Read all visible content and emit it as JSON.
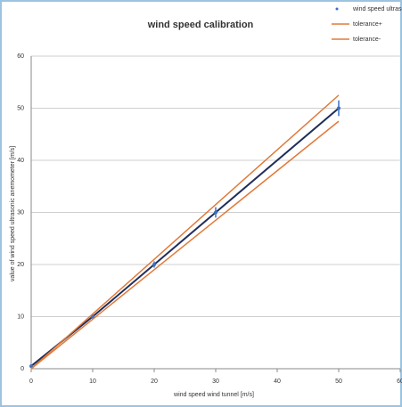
{
  "chart_data": {
    "type": "line",
    "title": "wind speed calibration",
    "x_label": "wind speed wind tunnel [m/s]",
    "y_label": "value of wind speed ultrasonic anemometer [m/s]",
    "x": [
      0,
      10,
      20,
      30,
      50
    ],
    "series": [
      {
        "name": "wind speed ultrasonic sensor",
        "color": "#1f2d5a",
        "marker_color": "#3a6fc4",
        "values": [
          0.5,
          10,
          20,
          30,
          50
        ],
        "errors": [
          0.3,
          0.4,
          0.6,
          1,
          1.5
        ]
      },
      {
        "name": "tolerance+",
        "color": "#e07a3a",
        "values": [
          0,
          10.5,
          21,
          31.5,
          52.5
        ]
      },
      {
        "name": "tolerance-",
        "color": "#e07a3a",
        "values": [
          0,
          9.5,
          19,
          28.5,
          47.5
        ]
      }
    ],
    "xlim": [
      0,
      60
    ],
    "xticks": [
      0,
      10,
      20,
      30,
      40,
      50,
      60
    ],
    "ylim": [
      0,
      60
    ],
    "yticks": [
      0,
      10,
      20,
      30,
      40,
      50,
      60
    ],
    "grid": true
  }
}
